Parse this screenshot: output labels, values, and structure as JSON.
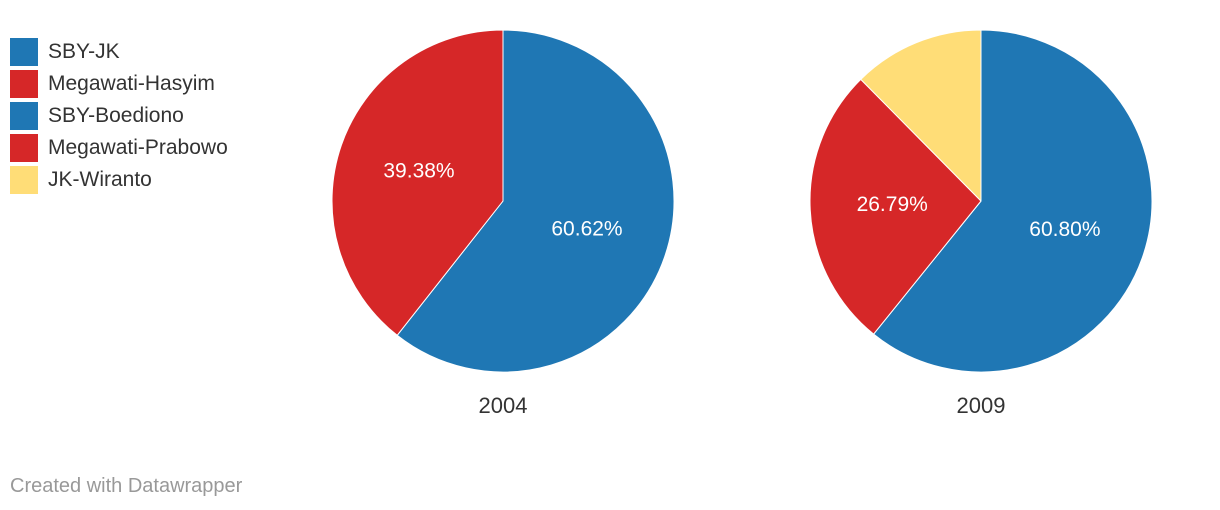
{
  "legend": [
    {
      "label": "SBY-JK",
      "color": "#1f77b4"
    },
    {
      "label": "Megawati-Hasyim",
      "color": "#d62728"
    },
    {
      "label": "SBY-Boediono",
      "color": "#1f77b4"
    },
    {
      "label": "Megawati-Prabowo",
      "color": "#d62728"
    },
    {
      "label": "JK-Wiranto",
      "color": "#ffdd77"
    }
  ],
  "chart_data": [
    {
      "type": "pie",
      "title": "2004",
      "slices": [
        {
          "label": "SBY-JK",
          "value": 60.62,
          "value_label": "60.62%",
          "color": "#1f77b4"
        },
        {
          "label": "Megawati-Hasyim",
          "value": 39.38,
          "value_label": "39.38%",
          "color": "#d62728"
        }
      ]
    },
    {
      "type": "pie",
      "title": "2009",
      "slices": [
        {
          "label": "SBY-Boediono",
          "value": 60.8,
          "value_label": "60.80%",
          "color": "#1f77b4"
        },
        {
          "label": "Megawati-Prabowo",
          "value": 26.79,
          "value_label": "26.79%",
          "color": "#d62728"
        },
        {
          "label": "JK-Wiranto",
          "value": 12.41,
          "value_label": "",
          "color": "#ffdd77"
        }
      ]
    }
  ],
  "footer": {
    "credit": "Created with Datawrapper"
  }
}
